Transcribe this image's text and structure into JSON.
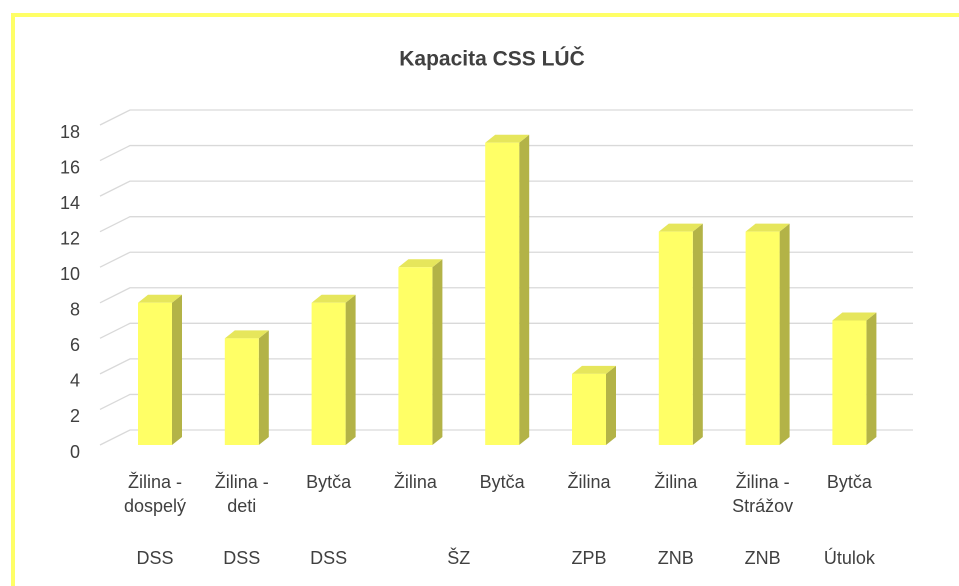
{
  "chart_data": {
    "type": "bar3d",
    "title": "Kapacita CSS LÚČ",
    "categories": [
      "Žilina - dospelý",
      "Žilina - deti",
      "Bytča",
      "Žilina",
      "Bytča",
      "Žilina",
      "Žilina",
      "Žilina - Strážov",
      "Bytča"
    ],
    "groups": [
      "DSS",
      "DSS",
      "DSS",
      "ŠZ",
      null,
      "ZPB",
      "ZNB",
      "ZNB",
      "Útulok"
    ],
    "values": [
      8,
      6,
      8,
      10,
      17,
      4,
      12,
      12,
      7
    ],
    "color": "#ffff66",
    "ylim": [
      0,
      18
    ],
    "yticks": [
      0,
      2,
      4,
      6,
      8,
      10,
      12,
      14,
      16,
      18
    ],
    "grid": true
  }
}
